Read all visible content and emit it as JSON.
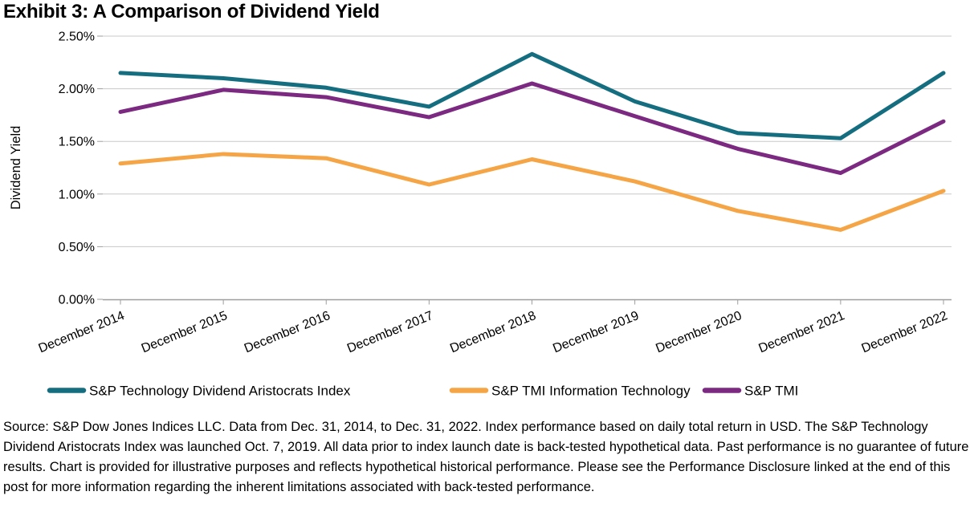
{
  "title": "Exhibit 3: A Comparison of Dividend Yield",
  "chart_data": {
    "type": "line",
    "title": "Exhibit 3: A Comparison of Dividend Yield",
    "xlabel": "",
    "ylabel": "Dividend Yield",
    "categories": [
      "December 2014",
      "December 2015",
      "December 2016",
      "December 2017",
      "December 2018",
      "December 2019",
      "December 2020",
      "December 2021",
      "December 2022"
    ],
    "series": [
      {
        "name": "S&P Technology Dividend Aristocrats Index",
        "color": "#146E80",
        "values": [
          2.15,
          2.1,
          2.01,
          1.83,
          2.33,
          1.88,
          1.58,
          1.53,
          2.15
        ]
      },
      {
        "name": "S&P TMI Information Technology",
        "color": "#F5A545",
        "values": [
          1.29,
          1.38,
          1.34,
          1.09,
          1.33,
          1.12,
          0.84,
          0.66,
          1.03
        ]
      },
      {
        "name": "S&P TMI",
        "color": "#7C2982",
        "values": [
          1.78,
          1.99,
          1.92,
          1.73,
          2.05,
          1.74,
          1.43,
          1.2,
          1.69
        ]
      }
    ],
    "ylim": [
      0,
      2.5
    ],
    "ytick_step": 0.5,
    "ytick_labels": [
      "0.00%",
      "0.50%",
      "1.00%",
      "1.50%",
      "2.00%",
      "2.50%"
    ],
    "grid": true,
    "x_label_angle_deg": -22,
    "legend_position": "bottom"
  },
  "colors": {
    "gridline": "#C8C8C8",
    "axis": "#9E9E9E"
  },
  "source_note": "Source: S&P Dow Jones Indices LLC. Data from Dec. 31, 2014, to Dec. 31, 2022. Index performance based on daily total return in USD. The S&P Technology Dividend Aristocrats Index was launched Oct. 7, 2019. All data prior to index launch date is back-tested hypothetical data. Past performance is no guarantee of future results. Chart is provided for illustrative purposes and reflects hypothetical historical performance. Please see the Performance Disclosure linked at the end of this post for more information regarding the inherent limitations associated with back-tested performance."
}
